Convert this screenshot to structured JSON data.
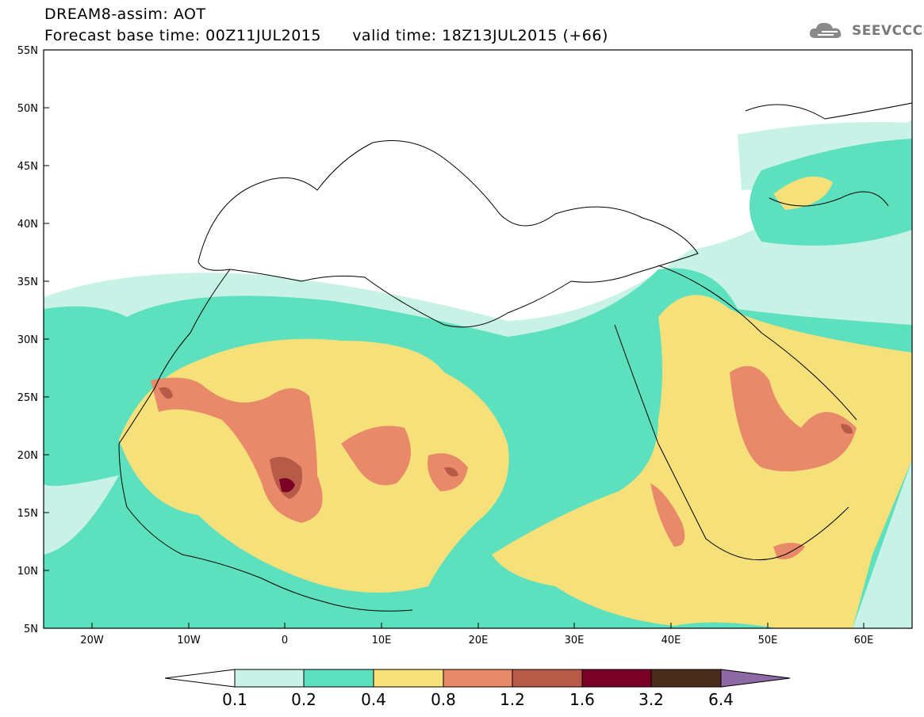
{
  "title": {
    "line1": "DREAM8-assim: AOT",
    "line2": "Forecast base time: 00Z11JUL2015      valid time: 18Z13JUL2015 (+66)"
  },
  "logo": {
    "text": "SEEVCCC",
    "icon": "cloud-icon"
  },
  "map": {
    "lat_labels": [
      "55N",
      "50N",
      "45N",
      "40N",
      "35N",
      "30N",
      "25N",
      "20N",
      "15N",
      "10N",
      "5N"
    ],
    "lon_labels": [
      "20W",
      "10W",
      "0",
      "10E",
      "20E",
      "30E",
      "40E",
      "50E",
      "60E"
    ],
    "lon_range": [
      -25,
      65
    ],
    "lat_range": [
      5,
      55
    ]
  },
  "colorbar": {
    "labels": [
      "0.1",
      "0.2",
      "0.4",
      "0.8",
      "1.2",
      "1.6",
      "3.2",
      "6.4"
    ],
    "colors": [
      "#ffffff",
      "#c9f2e6",
      "#5ce0bd",
      "#f5e07a",
      "#e8896a",
      "#b85a48",
      "#7a0026",
      "#4a2c1a",
      "#8e6aa5"
    ]
  }
}
